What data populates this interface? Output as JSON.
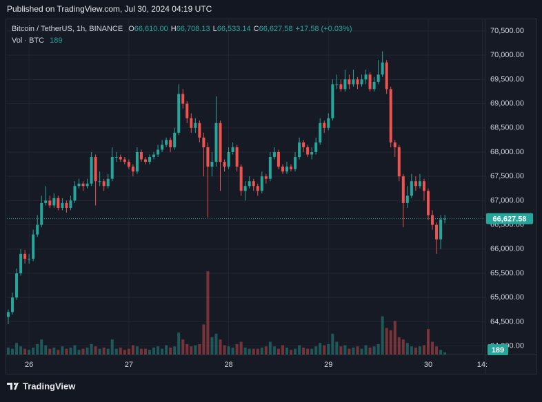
{
  "chart_data": {
    "type": "candlestick",
    "published": "Published on TradingView.com, Jul 30, 2024 04:19 UTC",
    "legend": {
      "symbol": "Bitcoin / TetherUS, 1h, BINANCE",
      "o_label": "O",
      "open_value": "66,610.00",
      "h_label": "H",
      "high_value": "66,708.13",
      "l_label": "L",
      "low_value": "66,533.14",
      "c_label": "C",
      "close_value": "66,627.58",
      "change": "+17.58 (+0.03%)",
      "vol_label": "Vol · BTC",
      "vol_value": "189"
    },
    "brand": "TradingView",
    "up_color": "#26a69a",
    "down_color": "#ef5350",
    "x": [
      0,
      1,
      2,
      3,
      4,
      5,
      6,
      7,
      8,
      9,
      10,
      11,
      12,
      13,
      14,
      15,
      16,
      17,
      18,
      19,
      20,
      21,
      22,
      23,
      24,
      25,
      26,
      27,
      28,
      29,
      30,
      31,
      32,
      33,
      34,
      35,
      36,
      37,
      38,
      39,
      40,
      41,
      42,
      43,
      44,
      45,
      46,
      47,
      48,
      49,
      50,
      51,
      52,
      53,
      54,
      55,
      56,
      57,
      58,
      59,
      60,
      61,
      62,
      63,
      64,
      65,
      66,
      67,
      68,
      69,
      70,
      71,
      72,
      73,
      74,
      75,
      76,
      77,
      78,
      79,
      80,
      81,
      82,
      83,
      84,
      85,
      86,
      87,
      88,
      89,
      90,
      91,
      92,
      93,
      94,
      95,
      96,
      97,
      98,
      99,
      100,
      101,
      102,
      103,
      104,
      105
    ],
    "open": [
      64600,
      64700,
      65000,
      65500,
      65900,
      65800,
      65800,
      66300,
      66500,
      66950,
      67000,
      66900,
      67050,
      66850,
      66950,
      66850,
      67000,
      67300,
      67350,
      67300,
      67350,
      67900,
      67400,
      67400,
      67300,
      67450,
      67900,
      67900,
      67850,
      67800,
      67700,
      67600,
      68000,
      67850,
      67800,
      67900,
      67950,
      68050,
      68150,
      68250,
      68100,
      68400,
      69200,
      69000,
      68700,
      68500,
      68600,
      68300,
      68100,
      67700,
      67800,
      68600,
      67800,
      67700,
      68000,
      68100,
      67700,
      67200,
      67300,
      67400,
      67300,
      67200,
      67500,
      67450,
      67900,
      68000,
      67700,
      67600,
      67700,
      67650,
      67900,
      68200,
      68100,
      67950,
      68000,
      68200,
      68600,
      68500,
      68700,
      69400,
      69400,
      69300,
      69500,
      69400,
      69500,
      69400,
      69500,
      69600,
      69300,
      69450,
      69600,
      69850,
      69300,
      68200,
      68100,
      67500,
      66950,
      67100,
      67400,
      67300,
      67400,
      67200,
      66700,
      66500,
      66200,
      66610
    ],
    "high": [
      64750,
      65100,
      65600,
      66000,
      65980,
      65900,
      66400,
      66700,
      67100,
      67300,
      67100,
      67150,
      67100,
      67050,
      67000,
      67100,
      67400,
      67450,
      67400,
      67450,
      68000,
      67950,
      67600,
      67450,
      67550,
      68100,
      68000,
      67950,
      67900,
      67850,
      67750,
      68100,
      68050,
      67900,
      67950,
      68000,
      68150,
      68250,
      68300,
      68300,
      68500,
      69400,
      69300,
      69050,
      68800,
      68700,
      68650,
      68400,
      68200,
      68000,
      69150,
      68650,
      67850,
      68100,
      68200,
      68150,
      67750,
      67400,
      67500,
      67450,
      67350,
      67600,
      67550,
      68000,
      68100,
      68050,
      67750,
      67800,
      67750,
      68000,
      68300,
      68250,
      68150,
      68100,
      68300,
      68700,
      68650,
      68800,
      69500,
      69600,
      69500,
      69700,
      69600,
      69700,
      69550,
      69600,
      69700,
      69650,
      69550,
      69900,
      70080,
      69900,
      69350,
      68250,
      68150,
      67550,
      67300,
      67550,
      67500,
      67550,
      67450,
      67250,
      66800,
      66550,
      66700,
      66708.13
    ],
    "low": [
      64450,
      64650,
      64950,
      65450,
      65700,
      65700,
      65750,
      66250,
      66450,
      66900,
      66850,
      66850,
      66800,
      66800,
      66750,
      66800,
      66950,
      67250,
      67200,
      67250,
      67300,
      66900,
      67300,
      67200,
      67250,
      67400,
      67800,
      67800,
      67750,
      67650,
      67500,
      67550,
      67800,
      67750,
      67750,
      67850,
      67900,
      68000,
      68100,
      68000,
      68050,
      68350,
      68900,
      68600,
      68400,
      68400,
      68200,
      67500,
      66650,
      67500,
      67700,
      67200,
      67600,
      67650,
      67950,
      67600,
      67100,
      67000,
      67250,
      67200,
      67100,
      67150,
      67350,
      67400,
      67850,
      67650,
      67550,
      67550,
      67600,
      67600,
      67850,
      68000,
      67900,
      67850,
      67950,
      68150,
      68400,
      68450,
      68650,
      69300,
      69250,
      69250,
      69300,
      69350,
      69300,
      69350,
      69400,
      69250,
      69250,
      69400,
      69550,
      69200,
      68100,
      67900,
      67400,
      66450,
      66850,
      67050,
      67200,
      67250,
      67000,
      66600,
      66400,
      65900,
      66000,
      66533.14
    ],
    "close": [
      64700,
      65000,
      65500,
      65900,
      65800,
      65800,
      66300,
      66500,
      66950,
      67000,
      66900,
      67050,
      66850,
      66950,
      66850,
      67000,
      67300,
      67350,
      67300,
      67350,
      67900,
      67400,
      67400,
      67300,
      67450,
      67900,
      67900,
      67850,
      67800,
      67700,
      67600,
      68000,
      67850,
      67800,
      67900,
      67950,
      68050,
      68150,
      68250,
      68100,
      68400,
      69200,
      69000,
      68700,
      68500,
      68600,
      68300,
      68100,
      67700,
      67800,
      68600,
      67800,
      67700,
      68000,
      68100,
      67700,
      67200,
      67300,
      67400,
      67300,
      67200,
      67500,
      67450,
      67900,
      68000,
      67700,
      67600,
      67700,
      67650,
      67900,
      68200,
      68100,
      67950,
      68000,
      68200,
      68600,
      68500,
      68700,
      69400,
      69400,
      69300,
      69500,
      69400,
      69500,
      69400,
      69500,
      69600,
      69300,
      69450,
      69600,
      69850,
      69300,
      68200,
      68100,
      67500,
      66950,
      67100,
      67400,
      67300,
      67400,
      67200,
      66700,
      66500,
      66200,
      66610,
      66627.58
    ],
    "volume": [
      600,
      500,
      1000,
      700,
      500,
      400,
      600,
      900,
      1300,
      800,
      500,
      600,
      400,
      700,
      500,
      600,
      800,
      400,
      500,
      600,
      900,
      700,
      500,
      600,
      500,
      1300,
      500,
      600,
      400,
      500,
      800,
      700,
      500,
      500,
      400,
      600,
      700,
      500,
      800,
      600,
      700,
      1900,
      1300,
      900,
      700,
      800,
      900,
      2600,
      7200,
      1500,
      1800,
      1300,
      800,
      700,
      600,
      900,
      1100,
      600,
      500,
      500,
      500,
      600,
      700,
      1100,
      700,
      500,
      800,
      600,
      400,
      500,
      800,
      600,
      500,
      500,
      700,
      1000,
      800,
      900,
      1800,
      1100,
      700,
      800,
      500,
      600,
      700,
      500,
      800,
      600,
      700,
      900,
      3300,
      2300,
      2100,
      2900,
      1500,
      1300,
      1000,
      700,
      600,
      700,
      800,
      2200,
      1100,
      700,
      400,
      189
    ],
    "xlim": [
      -0.33,
      114.6
    ],
    "xticks": [
      {
        "value": 5,
        "label": "26"
      },
      {
        "value": 29,
        "label": "27"
      },
      {
        "value": 53,
        "label": "28"
      },
      {
        "value": 77,
        "label": "29"
      },
      {
        "value": 101,
        "label": "30"
      },
      {
        "value": 114,
        "label": "14:"
      }
    ],
    "ylim": [
      63824,
      70741
    ],
    "yticks": [
      {
        "value": 70500,
        "label": "70,500.00"
      },
      {
        "value": 70000,
        "label": "70,000.00"
      },
      {
        "value": 69500,
        "label": "69,500.00"
      },
      {
        "value": 69000,
        "label": "69,000.00"
      },
      {
        "value": 68500,
        "label": "68,500.00"
      },
      {
        "value": 68000,
        "label": "68,000.00"
      },
      {
        "value": 67500,
        "label": "67,500.00"
      },
      {
        "value": 67000,
        "label": "67,000.00"
      },
      {
        "value": 66500,
        "label": "66,500.00"
      },
      {
        "value": 66000,
        "label": "66,000.00"
      },
      {
        "value": 65500,
        "label": "65,500.00"
      },
      {
        "value": 65000,
        "label": "65,000.00"
      },
      {
        "value": 64500,
        "label": "64,500.00"
      },
      {
        "value": 64000,
        "label": "64,000.00"
      }
    ],
    "y2lim": [
      0,
      29000
    ],
    "grid": true
  }
}
